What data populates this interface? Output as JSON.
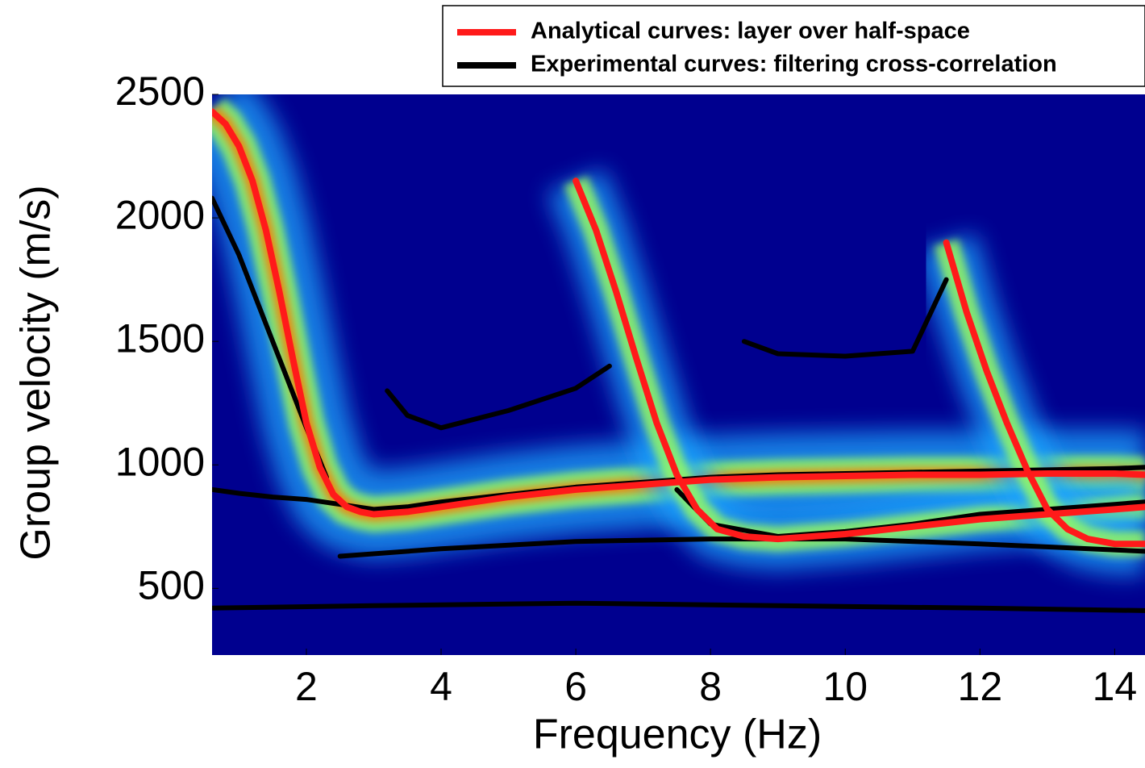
{
  "chart_data": {
    "type": "line",
    "xlabel": "Frequency (Hz)",
    "ylabel": "Group velocity (m/s)",
    "xlim": [
      0.6,
      14.45
    ],
    "ylim": [
      230,
      2500
    ],
    "xticks": [
      2,
      4,
      6,
      8,
      10,
      12,
      14
    ],
    "yticks": [
      500,
      1000,
      1500,
      2000,
      2500
    ],
    "legend": "upper right",
    "series": [
      {
        "name": "Analytical curves: layer over half-space",
        "color": "#ff1a1a",
        "curves": [
          {
            "x": [
              0.6,
              0.8,
              1.0,
              1.2,
              1.4,
              1.6,
              1.8,
              2.0,
              2.2,
              2.4,
              2.6,
              2.8,
              3.0,
              3.5,
              4.0,
              5.0,
              6.0,
              7.0,
              8.0,
              9.0,
              10.0,
              11.0,
              12.0,
              13.0,
              14.0,
              14.45
            ],
            "values": [
              2430,
              2380,
              2290,
              2150,
              1950,
              1700,
              1430,
              1170,
              990,
              880,
              830,
              810,
              800,
              810,
              830,
              870,
              900,
              920,
              940,
              950,
              955,
              960,
              960,
              965,
              965,
              960
            ]
          },
          {
            "x": [
              6.0,
              6.3,
              6.6,
              6.9,
              7.2,
              7.5,
              7.8,
              8.1,
              8.5,
              9.0,
              10.0,
              11.0,
              12.0,
              13.0,
              14.0,
              14.45
            ],
            "values": [
              2150,
              1950,
              1700,
              1430,
              1170,
              960,
              820,
              740,
              710,
              700,
              720,
              750,
              780,
              800,
              820,
              830
            ]
          },
          {
            "x": [
              11.5,
              11.8,
              12.1,
              12.4,
              12.7,
              13.0,
              13.3,
              13.6,
              14.0,
              14.45
            ],
            "values": [
              1900,
              1620,
              1380,
              1170,
              980,
              820,
              740,
              700,
              680,
              680
            ]
          }
        ]
      },
      {
        "name": "Experimental curves: filtering cross-correlation",
        "color": "#000000",
        "curves": [
          {
            "x": [
              0.6,
              1.0,
              1.5,
              2.0,
              2.5,
              3.0,
              3.5,
              4.0,
              5.0,
              6.0,
              7.0,
              8.0,
              9.0,
              10.0,
              11.0,
              12.0,
              13.0,
              14.0,
              14.45
            ],
            "values": [
              900,
              885,
              870,
              860,
              840,
              820,
              830,
              850,
              880,
              910,
              930,
              950,
              960,
              965,
              970,
              975,
              980,
              985,
              990
            ]
          },
          {
            "x": [
              0.6,
              1.0,
              1.5,
              2.0,
              2.3
            ],
            "values": [
              2080,
              1850,
              1500,
              1150,
              950
            ]
          },
          {
            "x": [
              7.5,
              8.0,
              9.0,
              10.0,
              11.0,
              12.0,
              13.0,
              14.0,
              14.45
            ],
            "values": [
              900,
              760,
              710,
              730,
              760,
              800,
              820,
              840,
              850
            ]
          },
          {
            "x": [
              3.2,
              3.5,
              4.0,
              5.0,
              6.0,
              6.5
            ],
            "values": [
              1300,
              1200,
              1150,
              1220,
              1310,
              1400
            ]
          },
          {
            "x": [
              8.5,
              9.0,
              10.0,
              11.0,
              11.5
            ],
            "values": [
              1500,
              1450,
              1440,
              1460,
              1750
            ]
          },
          {
            "x": [
              2.5,
              4.0,
              6.0,
              8.0,
              10.0,
              12.0,
              14.45
            ],
            "values": [
              630,
              660,
              690,
              700,
              700,
              680,
              650
            ]
          },
          {
            "x": [
              0.6,
              3.0,
              6.0,
              9.0,
              12.0,
              14.45
            ],
            "values": [
              420,
              430,
              440,
              430,
              420,
              410
            ]
          }
        ]
      }
    ]
  }
}
